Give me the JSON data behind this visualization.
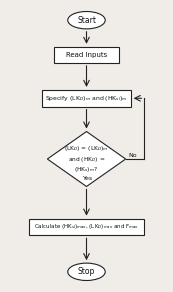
{
  "background_color": "#f0ede8",
  "arrow_color": "#222222",
  "box_color": "#ffffff",
  "box_edge": "#222222",
  "text_color": "#111111",
  "no_label": "No",
  "yes_label": "Yes",
  "start_label": "Start",
  "read_label": "Read Inputs",
  "specify_label": "Specify (LK$_D$)$_m$ and (HK$_{sl}$)$_m$",
  "diamond_label": "(LK$_D$) = (LK$_D$)$_m$\nand (HK$_D$) =\n(HK$_s$)$_m$?",
  "calc_label": "Calculate (HK$_{sl}$)$_{max}$, (LK$_D$)$_{max}$ and F$_{max}$",
  "stop_label": "Stop"
}
